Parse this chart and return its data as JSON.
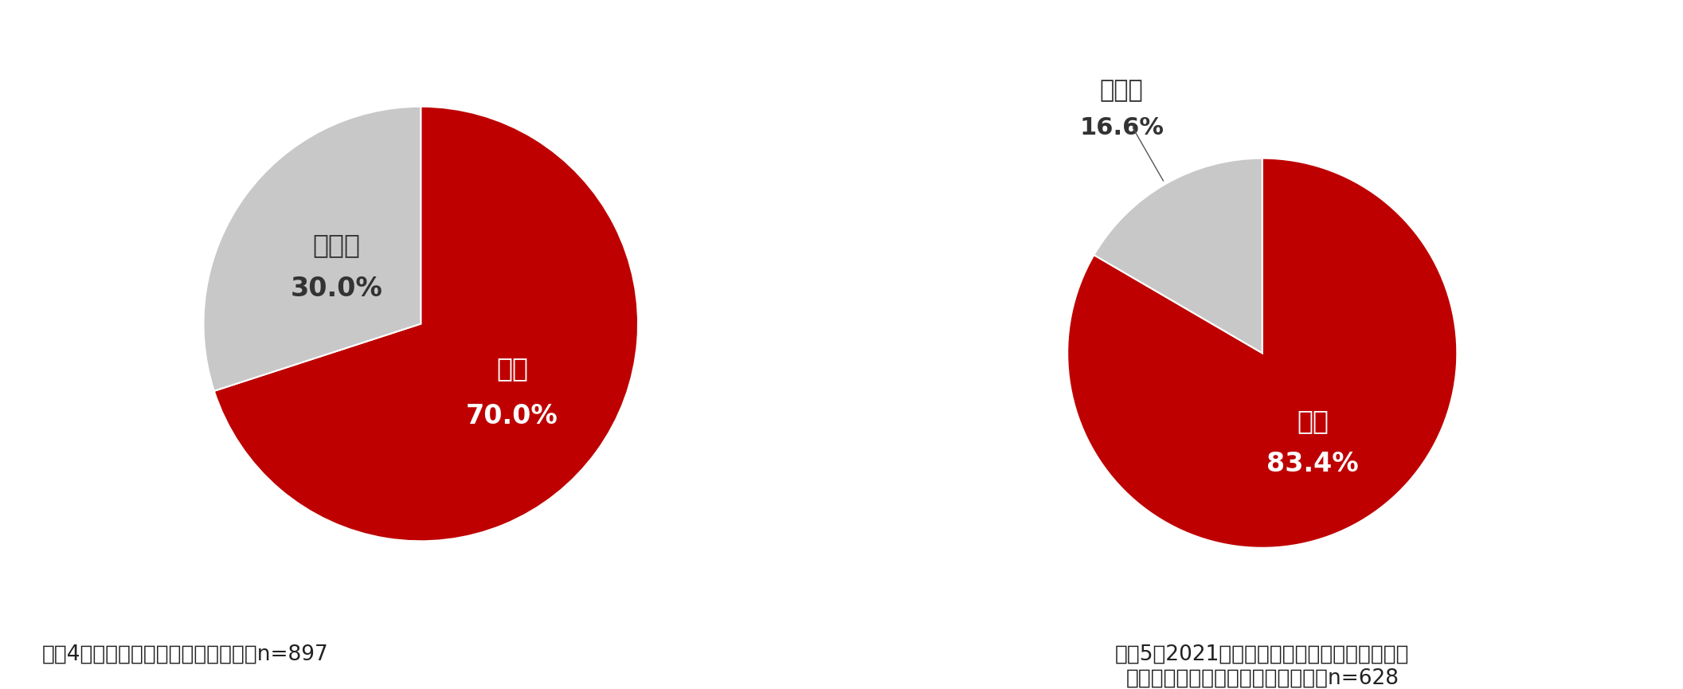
{
  "chart1": {
    "values": [
      70.0,
      30.0
    ],
    "labels": [
      "はい",
      "いいえ"
    ],
    "colors": [
      "#BE0000",
      "#C8C8C8"
    ],
    "label_colors": [
      "#FFFFFF",
      "#333333"
    ],
    "caption": "＜図4：日常的に節電をしているか＞n=897",
    "startangle": 90,
    "has_leader_line": false,
    "pct_labels": [
      "70.0%",
      "30.0%"
    ]
  },
  "chart2": {
    "values": [
      83.4,
      16.6
    ],
    "labels": [
      "はい",
      "いいえ"
    ],
    "colors": [
      "#BE0000",
      "#C8C8C8"
    ],
    "label_colors": [
      "#FFFFFF",
      "#333333"
    ],
    "caption_line1": "＜図5：2021年からの電気料金高騰を受けて、",
    "caption_line2": "さらに節電をするようになったか＞n=628",
    "startangle": 90,
    "has_leader_line": true,
    "pct_labels": [
      "83.4%",
      "16.6%"
    ]
  },
  "bg_color": "#FFFFFF",
  "border_color": "#BBBBBB",
  "label_fontsize": 24,
  "pct_fontsize": 24,
  "caption_fontsize": 19,
  "outside_label_fontsize": 22
}
